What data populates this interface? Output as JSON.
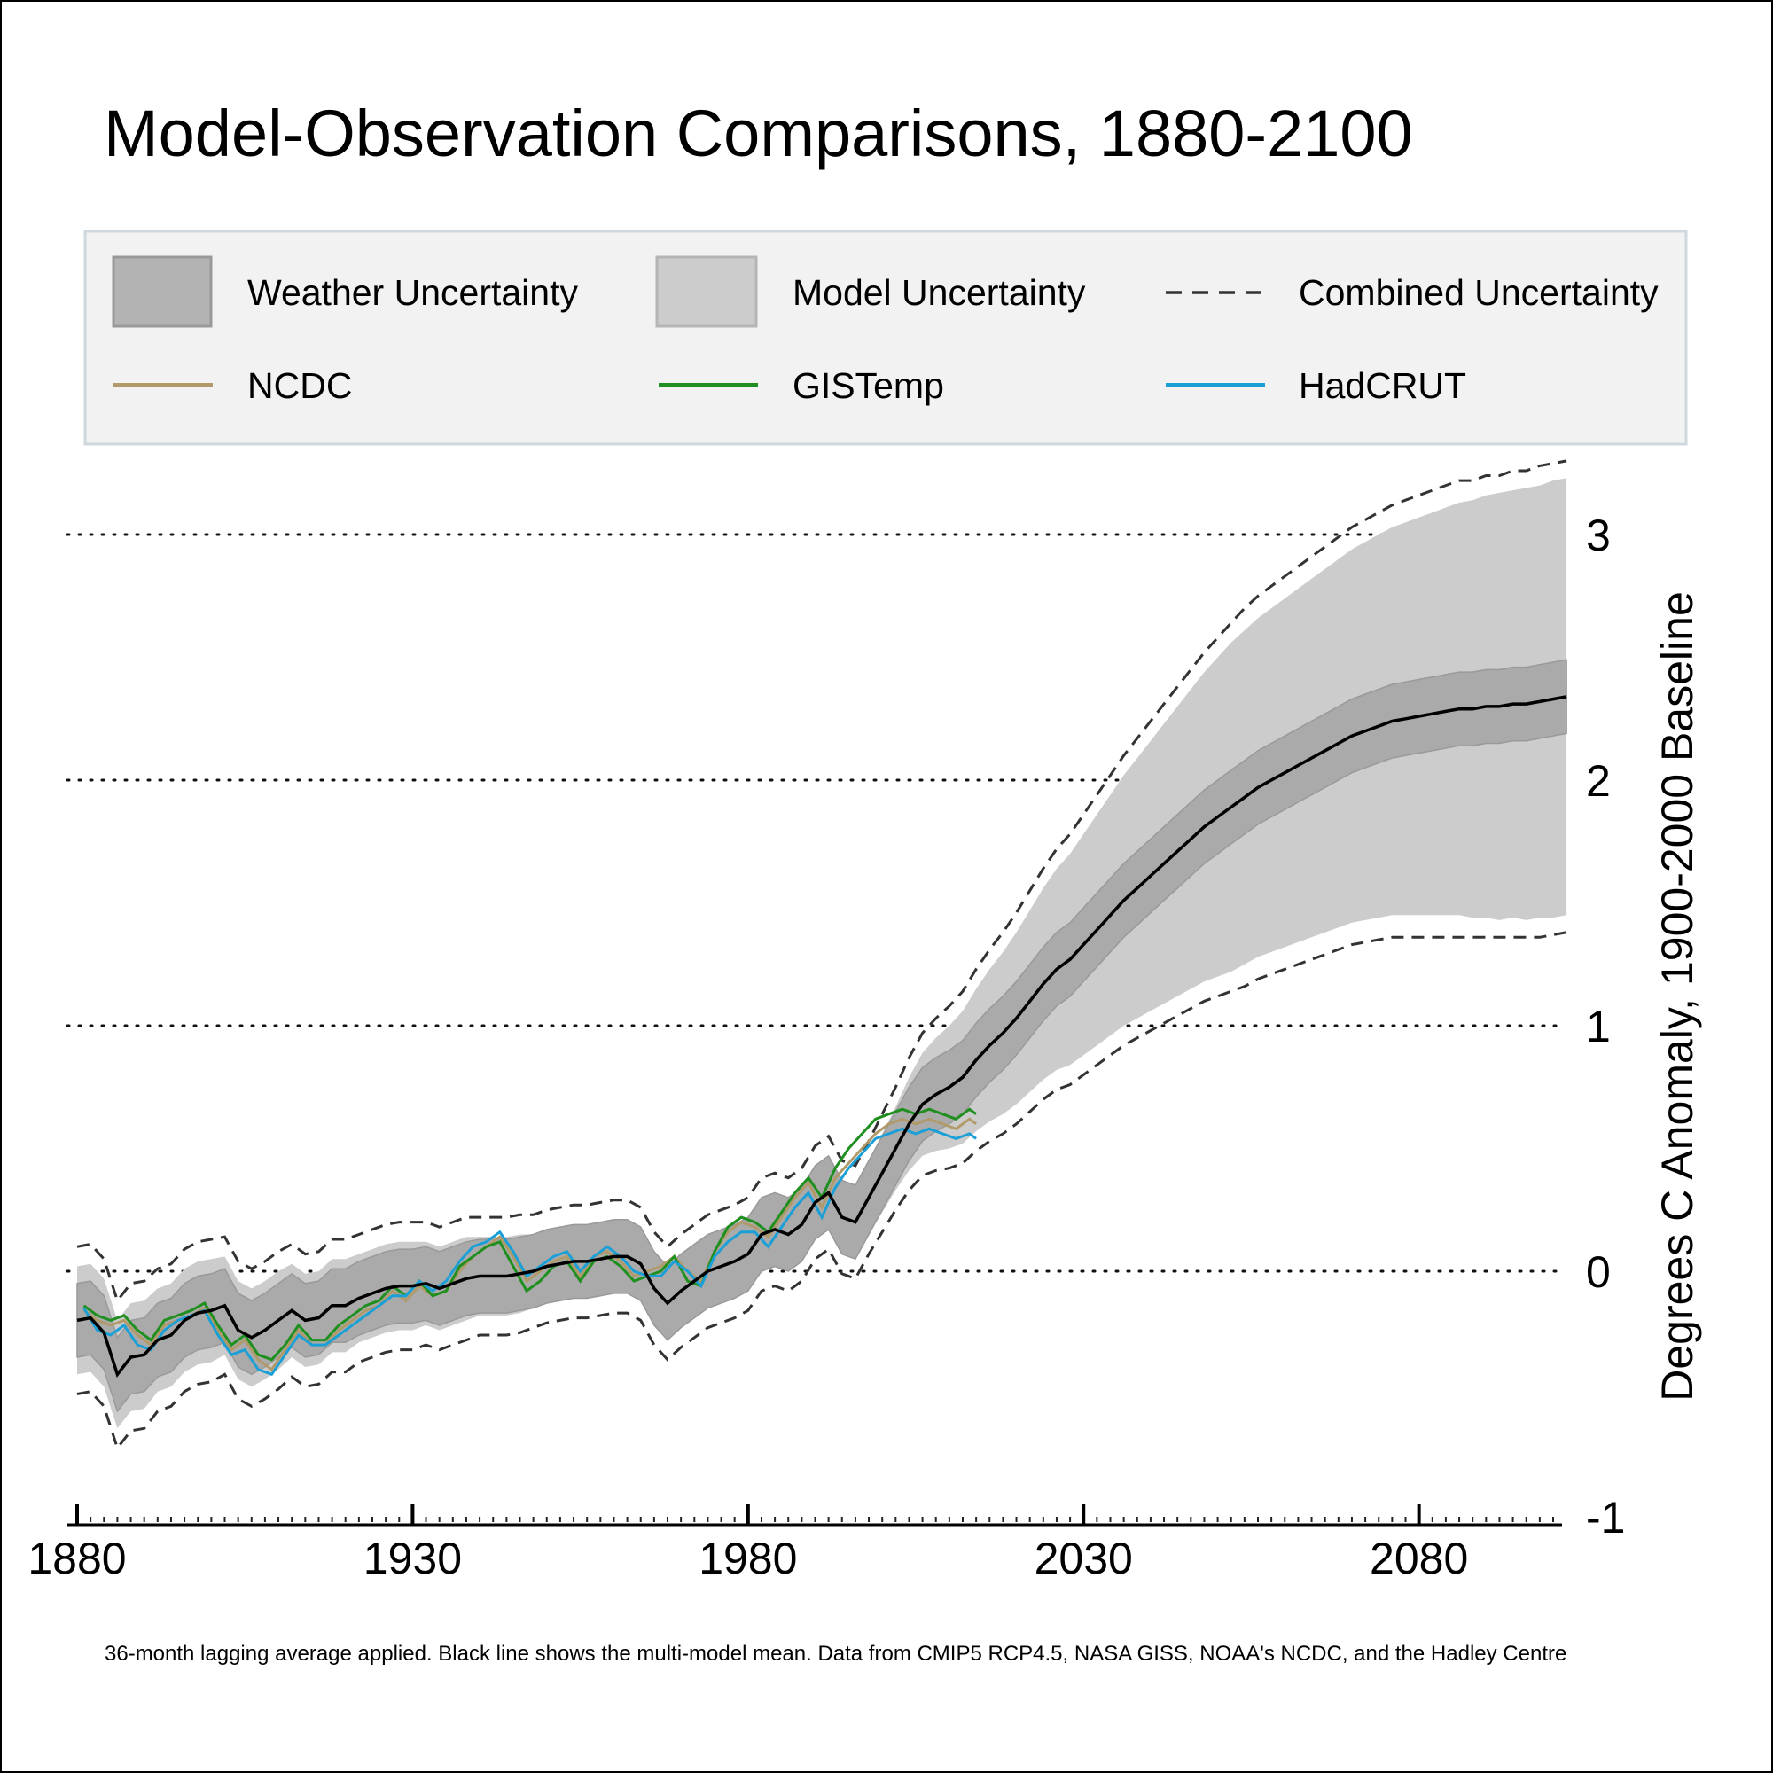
{
  "chart_data": {
    "type": "line",
    "title": "Model-Observation Comparisons, 1880-2100",
    "ylabel": "Degrees C Anomaly, 1900-2000 Baseline",
    "xlabel": "",
    "caption": "36-month lagging average applied. Black line shows the multi-model mean. Data from CMIP5 RCP4.5, NASA GISS, NOAA's NCDC, and the Hadley Centre",
    "xlim": [
      1880,
      2102
    ],
    "ylim": [
      -1,
      3.2
    ],
    "xticks": [
      "1880",
      "1930",
      "1980",
      "2030",
      "2080"
    ],
    "yticks": [
      "3",
      "2",
      "1",
      "0",
      "-1"
    ],
    "grid": "horizontal dotted",
    "legend_position": "top",
    "colors": {
      "weather_band": "#aaaaaa",
      "model_band": "#cccccc",
      "combined": "#333333",
      "mean": "#000000",
      "ncdc": "#b09a6a",
      "gistemp": "#1f8f1f",
      "hadcrut": "#1a9fd6",
      "legend_bg": "#f2f2f2",
      "legend_border": "#cfd8df"
    },
    "legend": [
      {
        "label": "Weather Uncertainty",
        "kind": "band-dark"
      },
      {
        "label": "Model Uncertainty",
        "kind": "band-light"
      },
      {
        "label": "Combined Uncertainty",
        "kind": "dashed"
      },
      {
        "label": "NCDC",
        "kind": "line-ncdc"
      },
      {
        "label": "GISTemp",
        "kind": "line-gistemp"
      },
      {
        "label": "HadCRUT",
        "kind": "line-hadcrut"
      }
    ],
    "model": {
      "x": [
        1880,
        1882,
        1884,
        1886,
        1888,
        1890,
        1892,
        1894,
        1896,
        1898,
        1900,
        1902,
        1904,
        1906,
        1908,
        1910,
        1912,
        1914,
        1916,
        1918,
        1920,
        1922,
        1924,
        1926,
        1928,
        1930,
        1932,
        1934,
        1936,
        1938,
        1940,
        1942,
        1944,
        1946,
        1948,
        1950,
        1952,
        1954,
        1956,
        1958,
        1960,
        1962,
        1964,
        1966,
        1968,
        1970,
        1972,
        1974,
        1976,
        1978,
        1980,
        1982,
        1984,
        1986,
        1988,
        1990,
        1992,
        1994,
        1996,
        1998,
        2000,
        2002,
        2004,
        2006,
        2008,
        2010,
        2012,
        2014,
        2016,
        2018,
        2020,
        2022,
        2024,
        2026,
        2028,
        2030,
        2032,
        2034,
        2036,
        2038,
        2040,
        2042,
        2044,
        2046,
        2048,
        2050,
        2052,
        2054,
        2056,
        2058,
        2060,
        2062,
        2064,
        2066,
        2068,
        2070,
        2072,
        2074,
        2076,
        2078,
        2080,
        2082,
        2084,
        2086,
        2088,
        2090,
        2092,
        2094,
        2096,
        2098,
        2100,
        2102
      ],
      "mean": [
        -0.2,
        -0.19,
        -0.25,
        -0.42,
        -0.35,
        -0.34,
        -0.28,
        -0.26,
        -0.2,
        -0.17,
        -0.16,
        -0.14,
        -0.24,
        -0.27,
        -0.24,
        -0.2,
        -0.16,
        -0.2,
        -0.19,
        -0.14,
        -0.14,
        -0.11,
        -0.09,
        -0.07,
        -0.06,
        -0.06,
        -0.05,
        -0.07,
        -0.05,
        -0.03,
        -0.02,
        -0.02,
        -0.02,
        -0.01,
        0.0,
        0.02,
        0.03,
        0.04,
        0.04,
        0.05,
        0.06,
        0.06,
        0.03,
        -0.07,
        -0.13,
        -0.08,
        -0.04,
        0.0,
        0.02,
        0.04,
        0.07,
        0.15,
        0.17,
        0.15,
        0.19,
        0.28,
        0.32,
        0.22,
        0.2,
        0.3,
        0.4,
        0.5,
        0.6,
        0.68,
        0.72,
        0.75,
        0.79,
        0.86,
        0.92,
        0.97,
        1.03,
        1.1,
        1.17,
        1.23,
        1.27,
        1.33,
        1.39,
        1.45,
        1.51,
        1.56,
        1.61,
        1.66,
        1.71,
        1.76,
        1.81,
        1.85,
        1.89,
        1.93,
        1.97,
        2.0,
        2.03,
        2.06,
        2.09,
        2.12,
        2.15,
        2.18,
        2.2,
        2.22,
        2.24,
        2.25,
        2.26,
        2.27,
        2.28,
        2.29,
        2.29,
        2.3,
        2.3,
        2.31,
        2.31,
        2.32,
        2.33,
        2.34
      ],
      "weather_hw": [
        0.15,
        0.15,
        0.15,
        0.15,
        0.15,
        0.15,
        0.15,
        0.15,
        0.15,
        0.15,
        0.15,
        0.15,
        0.15,
        0.15,
        0.15,
        0.15,
        0.15,
        0.15,
        0.15,
        0.15,
        0.15,
        0.15,
        0.15,
        0.15,
        0.15,
        0.15,
        0.15,
        0.15,
        0.15,
        0.15,
        0.15,
        0.15,
        0.15,
        0.15,
        0.15,
        0.15,
        0.15,
        0.15,
        0.15,
        0.15,
        0.15,
        0.15,
        0.15,
        0.15,
        0.15,
        0.15,
        0.15,
        0.15,
        0.15,
        0.15,
        0.15,
        0.15,
        0.15,
        0.15,
        0.15,
        0.15,
        0.15,
        0.15,
        0.15,
        0.15,
        0.15,
        0.15,
        0.15,
        0.15,
        0.15,
        0.15,
        0.15,
        0.15,
        0.15,
        0.15,
        0.15,
        0.15,
        0.15,
        0.15,
        0.15,
        0.15,
        0.15,
        0.15,
        0.15,
        0.15,
        0.15,
        0.15,
        0.15,
        0.15,
        0.15,
        0.15,
        0.15,
        0.15,
        0.15,
        0.15,
        0.15,
        0.15,
        0.15,
        0.15,
        0.15,
        0.15,
        0.15,
        0.15,
        0.15,
        0.15,
        0.15,
        0.15,
        0.15,
        0.15,
        0.15,
        0.15,
        0.15,
        0.15,
        0.15,
        0.15,
        0.15,
        0.15
      ],
      "model_hw": [
        0.22,
        0.22,
        0.22,
        0.22,
        0.22,
        0.22,
        0.21,
        0.21,
        0.21,
        0.21,
        0.21,
        0.2,
        0.2,
        0.2,
        0.2,
        0.2,
        0.19,
        0.19,
        0.19,
        0.19,
        0.19,
        0.18,
        0.18,
        0.18,
        0.18,
        0.18,
        0.17,
        0.17,
        0.17,
        0.17,
        0.16,
        0.16,
        0.16,
        0.16,
        0.15,
        0.15,
        0.15,
        0.15,
        0.15,
        0.15,
        0.15,
        0.15,
        0.15,
        0.15,
        0.15,
        0.15,
        0.15,
        0.15,
        0.15,
        0.15,
        0.15,
        0.15,
        0.15,
        0.15,
        0.15,
        0.15,
        0.15,
        0.15,
        0.15,
        0.15,
        0.16,
        0.17,
        0.19,
        0.21,
        0.23,
        0.25,
        0.27,
        0.29,
        0.31,
        0.33,
        0.35,
        0.37,
        0.39,
        0.41,
        0.43,
        0.45,
        0.47,
        0.49,
        0.51,
        0.53,
        0.55,
        0.57,
        0.59,
        0.61,
        0.63,
        0.65,
        0.67,
        0.68,
        0.69,
        0.7,
        0.71,
        0.72,
        0.73,
        0.74,
        0.75,
        0.76,
        0.77,
        0.78,
        0.79,
        0.8,
        0.81,
        0.82,
        0.83,
        0.84,
        0.85,
        0.86,
        0.87,
        0.87,
        0.88,
        0.88,
        0.89,
        0.89
      ],
      "combined_hw": [
        0.3,
        0.3,
        0.3,
        0.3,
        0.3,
        0.3,
        0.29,
        0.29,
        0.29,
        0.29,
        0.29,
        0.28,
        0.28,
        0.28,
        0.28,
        0.28,
        0.27,
        0.27,
        0.27,
        0.27,
        0.27,
        0.26,
        0.26,
        0.26,
        0.26,
        0.26,
        0.25,
        0.25,
        0.25,
        0.25,
        0.24,
        0.24,
        0.24,
        0.24,
        0.23,
        0.23,
        0.23,
        0.23,
        0.23,
        0.23,
        0.23,
        0.23,
        0.23,
        0.23,
        0.23,
        0.23,
        0.23,
        0.23,
        0.23,
        0.23,
        0.23,
        0.23,
        0.23,
        0.23,
        0.23,
        0.23,
        0.23,
        0.23,
        0.23,
        0.23,
        0.24,
        0.25,
        0.27,
        0.29,
        0.31,
        0.33,
        0.35,
        0.37,
        0.39,
        0.41,
        0.43,
        0.45,
        0.47,
        0.49,
        0.51,
        0.53,
        0.55,
        0.57,
        0.59,
        0.61,
        0.63,
        0.65,
        0.67,
        0.69,
        0.71,
        0.73,
        0.75,
        0.77,
        0.78,
        0.79,
        0.8,
        0.81,
        0.82,
        0.83,
        0.84,
        0.85,
        0.86,
        0.87,
        0.88,
        0.89,
        0.9,
        0.91,
        0.92,
        0.93,
        0.93,
        0.94,
        0.94,
        0.95,
        0.95,
        0.96,
        0.96,
        0.96
      ]
    },
    "observations": {
      "x": [
        1881,
        1883,
        1885,
        1887,
        1889,
        1891,
        1893,
        1895,
        1897,
        1899,
        1901,
        1903,
        1905,
        1907,
        1909,
        1911,
        1913,
        1915,
        1917,
        1919,
        1921,
        1923,
        1925,
        1927,
        1929,
        1931,
        1933,
        1935,
        1937,
        1939,
        1941,
        1943,
        1945,
        1947,
        1949,
        1951,
        1953,
        1955,
        1957,
        1959,
        1961,
        1963,
        1965,
        1967,
        1969,
        1971,
        1973,
        1975,
        1977,
        1979,
        1981,
        1983,
        1985,
        1987,
        1989,
        1991,
        1993,
        1995,
        1997,
        1999,
        2001,
        2003,
        2005,
        2007,
        2009,
        2011,
        2013,
        2014
      ],
      "series": [
        {
          "name": "NCDC",
          "values": [
            -0.16,
            -0.2,
            -0.22,
            -0.2,
            -0.26,
            -0.3,
            -0.22,
            -0.2,
            -0.18,
            -0.15,
            -0.24,
            -0.32,
            -0.28,
            -0.36,
            -0.4,
            -0.32,
            -0.24,
            -0.3,
            -0.3,
            -0.24,
            -0.2,
            -0.16,
            -0.14,
            -0.08,
            -0.12,
            -0.06,
            -0.1,
            -0.08,
            0.0,
            0.06,
            0.1,
            0.14,
            0.06,
            -0.04,
            0.0,
            0.04,
            0.06,
            -0.02,
            0.06,
            0.08,
            0.04,
            -0.02,
            0.0,
            0.02,
            0.06,
            0.0,
            -0.04,
            0.08,
            0.16,
            0.2,
            0.18,
            0.14,
            0.22,
            0.3,
            0.36,
            0.26,
            0.38,
            0.44,
            0.5,
            0.56,
            0.6,
            0.62,
            0.6,
            0.62,
            0.6,
            0.58,
            0.62,
            0.6
          ]
        },
        {
          "name": "GISTemp",
          "values": [
            -0.14,
            -0.18,
            -0.2,
            -0.18,
            -0.24,
            -0.28,
            -0.2,
            -0.18,
            -0.16,
            -0.13,
            -0.22,
            -0.3,
            -0.26,
            -0.34,
            -0.36,
            -0.3,
            -0.22,
            -0.28,
            -0.28,
            -0.22,
            -0.18,
            -0.14,
            -0.12,
            -0.06,
            -0.1,
            -0.04,
            -0.1,
            -0.08,
            0.02,
            0.06,
            0.1,
            0.12,
            0.02,
            -0.08,
            -0.04,
            0.02,
            0.04,
            -0.04,
            0.04,
            0.06,
            0.02,
            -0.04,
            -0.02,
            0.0,
            0.06,
            -0.04,
            -0.06,
            0.08,
            0.18,
            0.22,
            0.2,
            0.16,
            0.24,
            0.32,
            0.38,
            0.3,
            0.42,
            0.5,
            0.56,
            0.62,
            0.64,
            0.66,
            0.64,
            0.66,
            0.64,
            0.62,
            0.66,
            0.64
          ]
        },
        {
          "name": "HadCRUT",
          "values": [
            -0.15,
            -0.24,
            -0.26,
            -0.22,
            -0.3,
            -0.32,
            -0.24,
            -0.2,
            -0.18,
            -0.16,
            -0.26,
            -0.34,
            -0.32,
            -0.4,
            -0.42,
            -0.34,
            -0.26,
            -0.3,
            -0.3,
            -0.26,
            -0.22,
            -0.18,
            -0.14,
            -0.1,
            -0.1,
            -0.04,
            -0.08,
            -0.04,
            0.04,
            0.1,
            0.12,
            0.16,
            0.08,
            -0.02,
            0.02,
            0.06,
            0.08,
            0.0,
            0.06,
            0.1,
            0.06,
            0.0,
            -0.02,
            -0.02,
            0.04,
            0.0,
            -0.06,
            0.06,
            0.12,
            0.16,
            0.16,
            0.1,
            0.18,
            0.26,
            0.32,
            0.22,
            0.34,
            0.42,
            0.48,
            0.54,
            0.56,
            0.58,
            0.56,
            0.58,
            0.56,
            0.54,
            0.56,
            0.54
          ]
        }
      ]
    }
  }
}
